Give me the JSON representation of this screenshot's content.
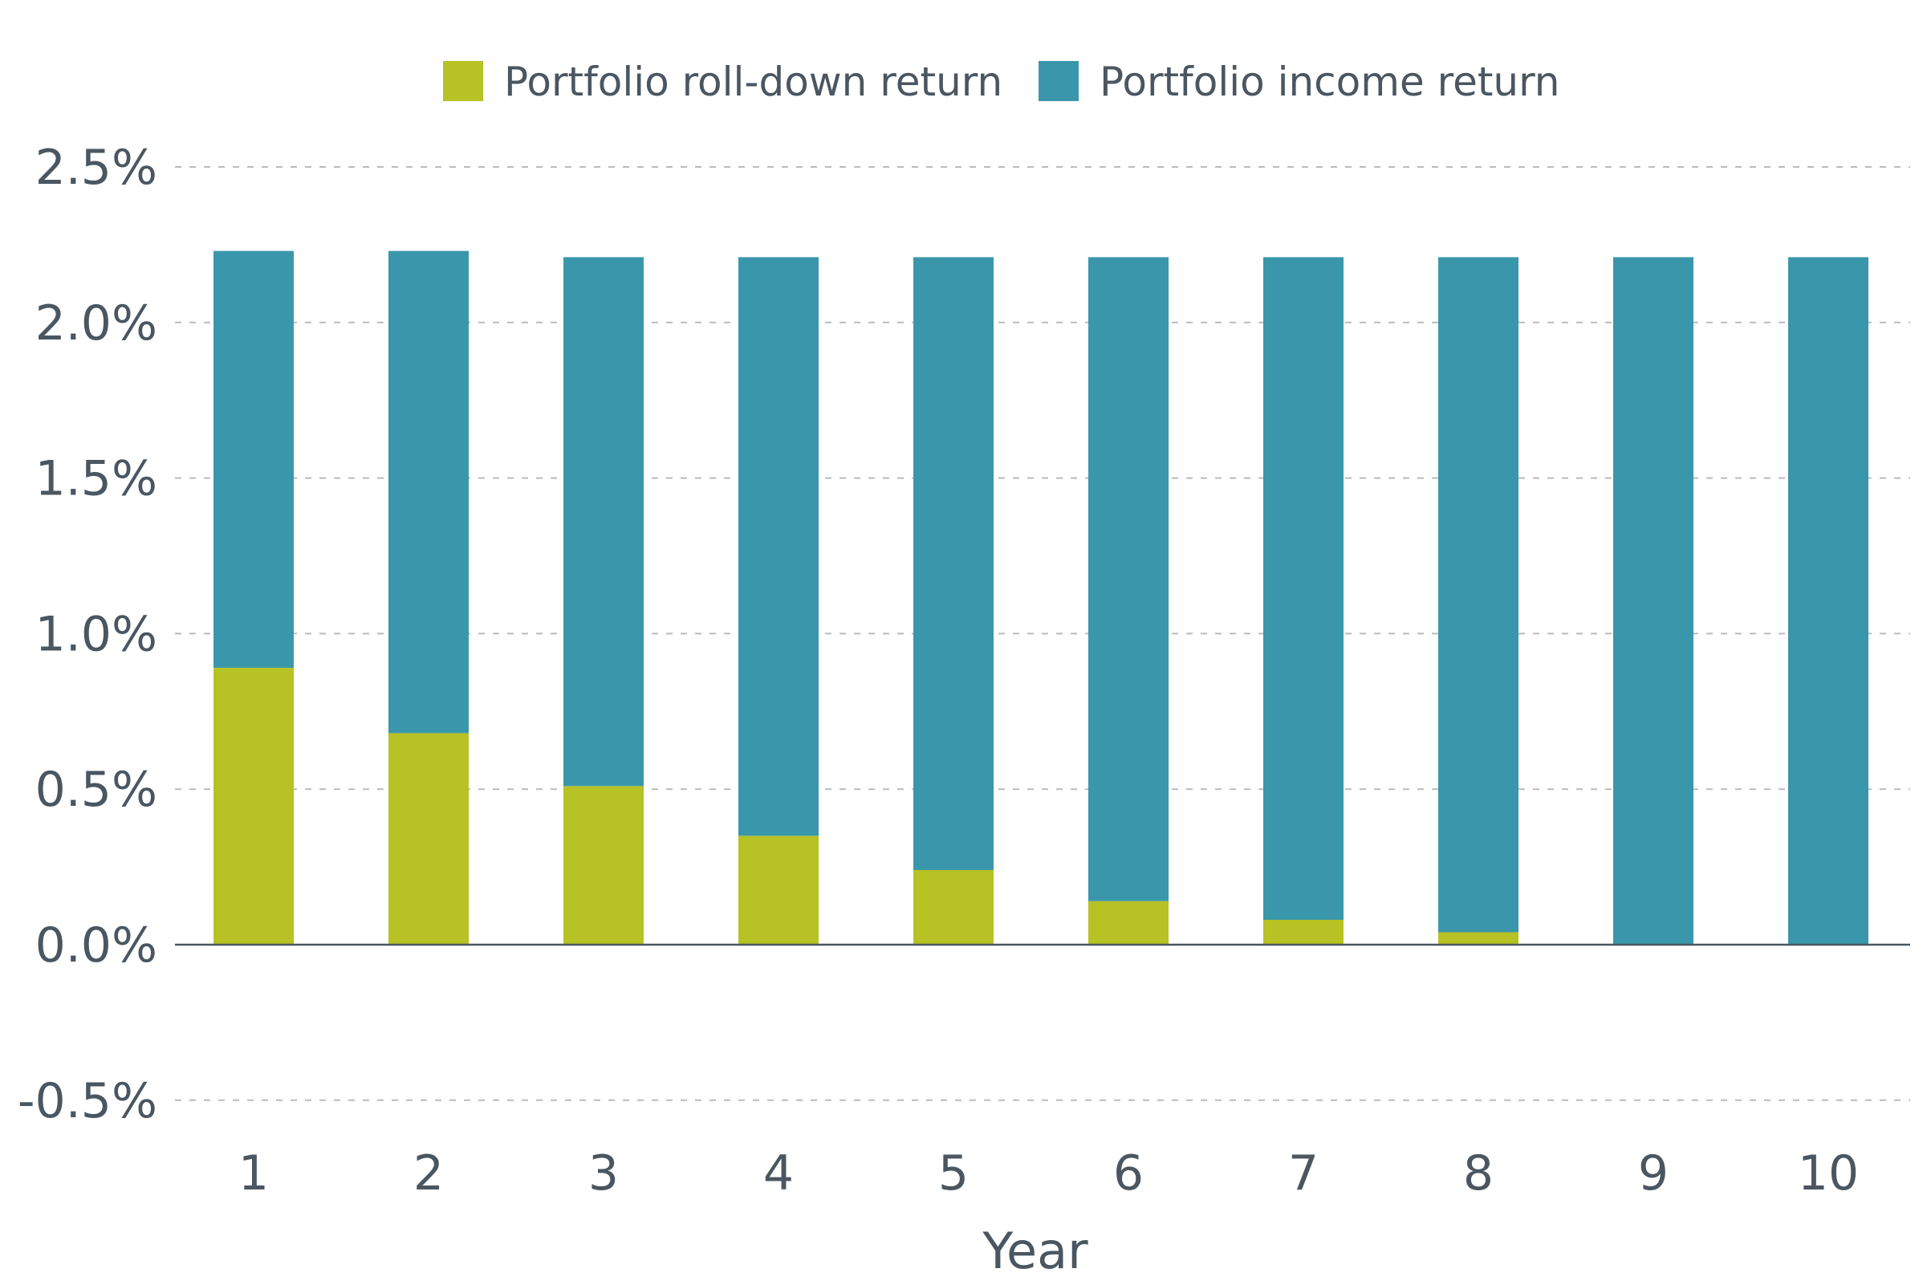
{
  "chart_data": {
    "type": "bar",
    "stacked": true,
    "categories": [
      "1",
      "2",
      "3",
      "4",
      "5",
      "6",
      "7",
      "8",
      "9",
      "10"
    ],
    "series": [
      {
        "name": "Portfolio roll-down return",
        "color": "#b7c224",
        "values": [
          0.89,
          0.68,
          0.51,
          0.35,
          0.24,
          0.14,
          0.08,
          0.04,
          0.0,
          0.0
        ]
      },
      {
        "name": "Portfolio income return",
        "color": "#3a97ab",
        "values": [
          1.34,
          1.55,
          1.7,
          1.86,
          1.97,
          2.07,
          2.13,
          2.17,
          2.21,
          2.21
        ]
      }
    ],
    "xlabel": "Year",
    "ylabel": "",
    "ylim": [
      -0.5,
      2.5
    ],
    "yticks": [
      "2.5%",
      "2.0%",
      "1.5%",
      "1.0%",
      "0.5%",
      "0.0%",
      "-0.5%"
    ],
    "ytick_values": [
      2.5,
      2.0,
      1.5,
      1.0,
      0.5,
      0.0,
      -0.5
    ],
    "grid": true,
    "grid_style": "dashed",
    "legend_position": "top-center"
  },
  "colors": {
    "text": "#4a5660",
    "grid": "#b8bcc0",
    "baseline": "#4a5660",
    "rolldown": "#b7c224",
    "income": "#3a97ab"
  }
}
